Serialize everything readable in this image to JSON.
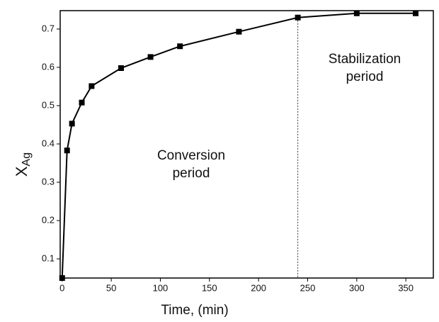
{
  "chart_data": {
    "type": "line",
    "x": [
      0,
      5,
      10,
      20,
      30,
      60,
      90,
      120,
      180,
      240,
      300,
      360
    ],
    "series": [
      {
        "name": "XAg",
        "color": "#000000",
        "values": [
          0.05,
          0.383,
          0.453,
          0.508,
          0.551,
          0.598,
          0.627,
          0.655,
          0.693,
          0.73,
          0.741,
          0.741
        ]
      }
    ],
    "xlim": [
      -2,
      378
    ],
    "ylim": [
      0.05,
      0.748
    ],
    "xticks": [
      0,
      50,
      100,
      150,
      200,
      250,
      300,
      350
    ],
    "yticks": [
      0.1,
      0.2,
      0.3,
      0.4,
      0.5,
      0.6,
      0.7
    ],
    "x_label": "Time, (min)",
    "y_label": {
      "main": "X",
      "sub": "Ag"
    },
    "vline": 240,
    "annotations": [
      {
        "lines": [
          "Conversion",
          "period"
        ]
      },
      {
        "lines": [
          "Stabilization",
          "period"
        ]
      }
    ]
  }
}
